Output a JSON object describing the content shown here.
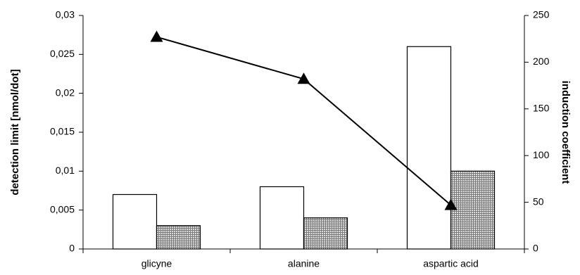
{
  "chart_data": {
    "type": "bar",
    "categories": [
      "glicyne",
      "alanine",
      "aspartic acid"
    ],
    "ylabel": "detection limit [nmol/dot]",
    "y2label": "induction coefficient",
    "ylim": [
      0,
      0.03
    ],
    "yticks": [
      0,
      {
        "value": 0.005,
        "label": "0,005"
      },
      {
        "value": 0.01,
        "label": "0,01"
      },
      {
        "value": 0.015,
        "label": "0,015"
      },
      {
        "value": 0.02,
        "label": "0,02"
      },
      {
        "value": 0.025,
        "label": "0,025"
      },
      {
        "value": 0.03,
        "label": "0,03"
      }
    ],
    "y2lim": [
      0,
      250
    ],
    "y2ticks": [
      0,
      50,
      100,
      150,
      200,
      250
    ],
    "series": [
      {
        "type": "bar",
        "color": "#ffffff",
        "values": [
          0.007,
          0.008,
          0.026
        ]
      },
      {
        "type": "bar",
        "color": "#7a7a7a",
        "hatch": true,
        "values": [
          0.003,
          0.004,
          0.01
        ]
      },
      {
        "type": "line",
        "axis": "y2",
        "color": "#000000",
        "values": [
          227,
          182,
          47
        ]
      }
    ]
  }
}
